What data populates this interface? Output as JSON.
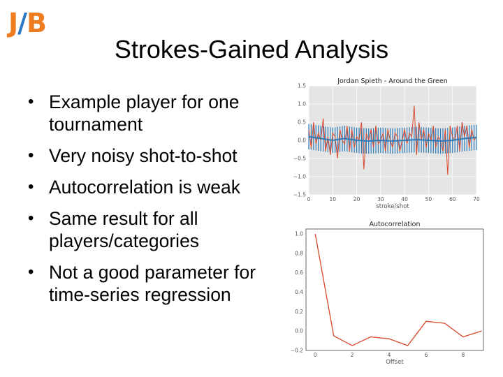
{
  "logo": {
    "left": "J",
    "slash": "/",
    "right": "B"
  },
  "title": "Strokes-Gained Analysis",
  "bullets": [
    {
      "line1": "Example player for one",
      "line2": "tournament"
    },
    {
      "line1": "Very noisy shot-to-shot",
      "line2": ""
    },
    {
      "line1": "Autocorrelation is weak",
      "line2": ""
    },
    {
      "line1": "Same result for all",
      "line2": "players/categories"
    },
    {
      "line1": "Not a good parameter for",
      "line2": "time-series regression"
    }
  ],
  "colors": {
    "series_red": "#d9482b",
    "series_blue": "#2b7bb9",
    "plot_bg": "#e5e5e5",
    "logo_orange": "#ee7d22",
    "logo_blue": "#2c78c6"
  },
  "chart_data": [
    {
      "type": "line",
      "title": "Jordan Spieth - Around the Green",
      "xlabel": "stroke/shot",
      "ylabel": "",
      "xlim": [
        0,
        70
      ],
      "ylim": [
        -1.5,
        1.5
      ],
      "xticks": [
        0,
        10,
        20,
        30,
        40,
        50,
        60,
        70
      ],
      "yticks": [
        -1.5,
        -1.0,
        -0.5,
        0.0,
        0.5,
        1.0,
        1.5
      ],
      "grid": true,
      "series": [
        {
          "color": "#d9482b",
          "x": [
            0,
            1,
            2,
            3,
            4,
            5,
            6,
            7,
            8,
            9,
            10,
            11,
            12,
            13,
            14,
            15,
            16,
            17,
            18,
            19,
            20,
            21,
            22,
            23,
            24,
            25,
            26,
            27,
            28,
            29,
            30,
            31,
            32,
            33,
            34,
            35,
            36,
            37,
            38,
            39,
            40,
            41,
            42,
            43,
            44,
            45,
            46,
            47,
            48,
            49,
            50,
            51,
            52,
            53,
            54,
            55,
            56,
            57,
            58,
            59,
            60,
            61,
            62,
            63,
            64,
            65,
            66,
            67,
            68,
            69,
            70
          ],
          "values": [
            0.3,
            -0.2,
            0.5,
            -0.1,
            0.2,
            0.0,
            0.6,
            -0.3,
            0.1,
            -0.4,
            0.2,
            0.1,
            -0.5,
            0.3,
            0.0,
            -0.1,
            0.4,
            -0.3,
            0.3,
            -0.2,
            0.1,
            0.0,
            0.5,
            -0.8,
            0.2,
            0.0,
            0.3,
            -0.2,
            0.4,
            -0.1,
            0.0,
            0.2,
            -0.3,
            0.3,
            0.0,
            -0.2,
            0.2,
            0.1,
            -0.3,
            0.0,
            0.3,
            -0.1,
            0.2,
            0.1,
            0.95,
            -0.4,
            0.5,
            0.0,
            0.3,
            -0.2,
            0.2,
            0.0,
            0.4,
            -0.2,
            0.1,
            0.0,
            -0.3,
            0.3,
            -0.95,
            0.4,
            0.1,
            0.0,
            0.4,
            -0.3,
            0.5,
            0.1,
            0.4,
            -0.2,
            0.3,
            0.0,
            0.1
          ]
        },
        {
          "color": "#2b7bb9",
          "x": [
            0,
            5,
            10,
            15,
            20,
            25,
            30,
            35,
            40,
            45,
            50,
            55,
            60,
            65,
            70
          ],
          "values": [
            0.1,
            0.05,
            0.0,
            0.05,
            0.0,
            -0.02,
            0.0,
            -0.02,
            0.0,
            0.02,
            0.0,
            -0.02,
            0.0,
            0.05,
            0.08
          ],
          "error_band": 0.35
        }
      ]
    },
    {
      "type": "line",
      "title": "Autocorrelation",
      "xlabel": "Offset",
      "ylabel": "",
      "xlim": [
        -0.5,
        9.1
      ],
      "ylim": [
        -0.2,
        1.05
      ],
      "xticks": [
        0,
        2,
        4,
        6,
        8
      ],
      "yticks": [
        -0.2,
        0.0,
        0.2,
        0.4,
        0.6,
        0.8,
        1.0
      ],
      "grid": false,
      "series": [
        {
          "color": "#d9482b",
          "x": [
            0,
            1,
            2,
            3,
            4,
            5,
            6,
            7,
            8,
            9
          ],
          "values": [
            1.0,
            -0.05,
            -0.15,
            -0.06,
            -0.08,
            -0.15,
            0.1,
            0.08,
            -0.06,
            0.0
          ]
        }
      ]
    }
  ]
}
